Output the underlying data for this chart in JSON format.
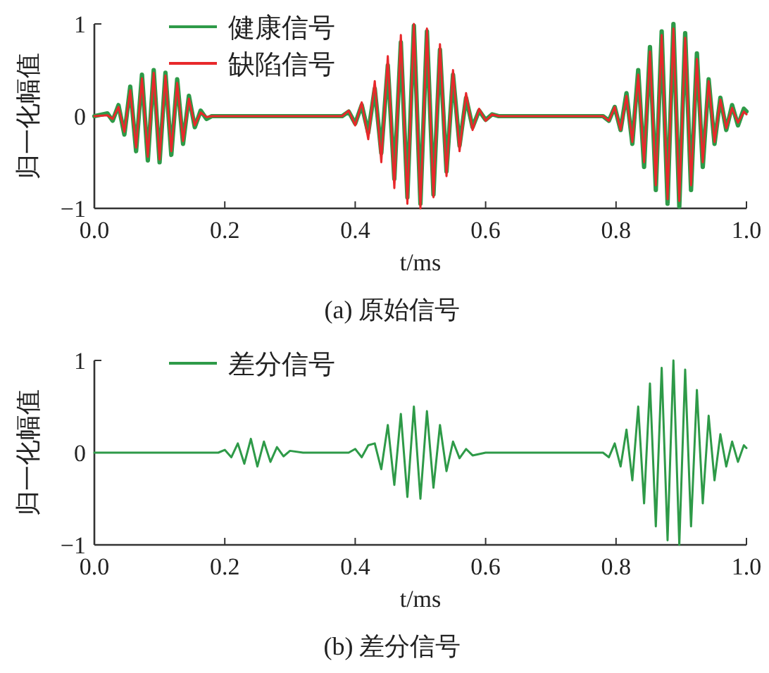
{
  "chart_data": [
    {
      "type": "line",
      "xlabel": "t/ms",
      "ylabel": "归一化幅值",
      "annotations": [
        "(a) 原始信号"
      ],
      "xlim": [
        0,
        1
      ],
      "ylim": [
        -1,
        1
      ],
      "xticks": [
        {
          "value": 0,
          "label": "0.0"
        },
        {
          "value": 0.2,
          "label": "0.2"
        },
        {
          "value": 0.4,
          "label": "0.4"
        },
        {
          "value": 0.6,
          "label": "0.6"
        },
        {
          "value": 0.8,
          "label": "0.8"
        },
        {
          "value": 1,
          "label": "1.0"
        }
      ],
      "yticks": [
        -1,
        0,
        1
      ],
      "grid": false,
      "legend": "top left",
      "series": [
        {
          "name": "健康信号",
          "color": "#2e9a48",
          "x": [
            0,
            0.02,
            0.028,
            0.037,
            0.046,
            0.055,
            0.064,
            0.073,
            0.082,
            0.091,
            0.1,
            0.109,
            0.118,
            0.127,
            0.136,
            0.145,
            0.154,
            0.163,
            0.172,
            0.18,
            0.38,
            0.39,
            0.4,
            0.41,
            0.42,
            0.43,
            0.44,
            0.45,
            0.46,
            0.47,
            0.48,
            0.49,
            0.5,
            0.51,
            0.52,
            0.53,
            0.54,
            0.55,
            0.56,
            0.57,
            0.58,
            0.59,
            0.6,
            0.61,
            0.62,
            0.78,
            0.789,
            0.798,
            0.807,
            0.816,
            0.825,
            0.834,
            0.843,
            0.852,
            0.861,
            0.87,
            0.879,
            0.888,
            0.897,
            0.906,
            0.915,
            0.924,
            0.933,
            0.942,
            0.951,
            0.96,
            0.969,
            0.978,
            0.987,
            0.996,
            1
          ],
          "values": [
            0,
            0.03,
            -0.05,
            0.12,
            -0.2,
            0.32,
            -0.38,
            0.45,
            -0.48,
            0.5,
            -0.5,
            0.47,
            -0.42,
            0.4,
            -0.3,
            0.22,
            -0.12,
            0.06,
            -0.03,
            0,
            0,
            0.05,
            -0.08,
            0.12,
            -0.18,
            0.3,
            -0.4,
            0.55,
            -0.68,
            0.8,
            -0.88,
            0.98,
            -0.95,
            0.92,
            -0.85,
            0.72,
            -0.6,
            0.45,
            -0.32,
            0.2,
            -0.12,
            0.06,
            -0.04,
            0.02,
            0,
            0,
            -0.05,
            0.1,
            -0.15,
            0.25,
            -0.3,
            0.5,
            -0.55,
            0.75,
            -0.8,
            0.92,
            -0.95,
            1,
            -0.98,
            0.9,
            -0.8,
            0.68,
            -0.55,
            0.4,
            -0.3,
            0.2,
            -0.15,
            0.12,
            -0.1,
            0.08,
            0.05
          ]
        },
        {
          "name": "缺陷信号",
          "color": "#e8282b",
          "x": [
            0,
            0.02,
            0.028,
            0.037,
            0.046,
            0.055,
            0.064,
            0.073,
            0.082,
            0.091,
            0.1,
            0.109,
            0.118,
            0.127,
            0.136,
            0.145,
            0.154,
            0.163,
            0.172,
            0.18,
            0.38,
            0.39,
            0.4,
            0.41,
            0.42,
            0.43,
            0.44,
            0.45,
            0.46,
            0.47,
            0.48,
            0.49,
            0.5,
            0.51,
            0.52,
            0.53,
            0.54,
            0.55,
            0.56,
            0.57,
            0.58,
            0.59,
            0.6,
            0.61,
            0.62,
            0.78,
            0.789,
            0.798,
            0.807,
            0.816,
            0.825,
            0.834,
            0.843,
            0.852,
            0.861,
            0.87,
            0.879,
            0.888,
            0.897,
            0.906,
            0.915,
            0.924,
            0.933,
            0.942,
            0.951,
            0.96,
            0.969,
            0.978,
            0.987,
            0.996,
            1
          ],
          "values": [
            0,
            0.01,
            -0.03,
            0.1,
            -0.17,
            0.28,
            -0.34,
            0.41,
            -0.44,
            0.47,
            -0.47,
            0.44,
            -0.38,
            0.36,
            -0.27,
            0.19,
            -0.1,
            0.04,
            -0.01,
            0,
            0,
            0.06,
            -0.1,
            0.15,
            -0.25,
            0.38,
            -0.5,
            0.65,
            -0.78,
            0.88,
            -0.95,
            1,
            -1,
            0.95,
            -0.88,
            0.78,
            -0.65,
            0.5,
            -0.38,
            0.25,
            -0.15,
            0.08,
            -0.05,
            0.02,
            0,
            0,
            -0.05,
            0.1,
            -0.15,
            0.22,
            -0.28,
            0.45,
            -0.5,
            0.7,
            -0.75,
            0.88,
            -0.9,
            0.95,
            -0.92,
            0.85,
            -0.75,
            0.62,
            -0.5,
            0.38,
            -0.28,
            0.18,
            -0.13,
            0.09,
            -0.07,
            0.05,
            0.02
          ]
        }
      ]
    },
    {
      "type": "line",
      "xlabel": "t/ms",
      "ylabel": "归一化幅值",
      "annotations": [
        "(b) 差分信号"
      ],
      "xlim": [
        0,
        1
      ],
      "ylim": [
        -1,
        1
      ],
      "xticks": [
        {
          "value": 0,
          "label": "0.0"
        },
        {
          "value": 0.2,
          "label": "0.2"
        },
        {
          "value": 0.4,
          "label": "0.4"
        },
        {
          "value": 0.6,
          "label": "0.6"
        },
        {
          "value": 0.8,
          "label": "0.8"
        },
        {
          "value": 1,
          "label": "1.0"
        }
      ],
      "yticks": [
        -1,
        0,
        1
      ],
      "grid": false,
      "legend": "top left",
      "series": [
        {
          "name": "差分信号",
          "color": "#2e9a48",
          "x": [
            0,
            0.19,
            0.2,
            0.21,
            0.22,
            0.23,
            0.24,
            0.25,
            0.26,
            0.27,
            0.28,
            0.29,
            0.3,
            0.32,
            0.39,
            0.4,
            0.41,
            0.42,
            0.43,
            0.44,
            0.45,
            0.46,
            0.47,
            0.48,
            0.49,
            0.5,
            0.51,
            0.52,
            0.53,
            0.54,
            0.55,
            0.56,
            0.57,
            0.58,
            0.6,
            0.78,
            0.789,
            0.798,
            0.807,
            0.816,
            0.825,
            0.834,
            0.843,
            0.852,
            0.861,
            0.87,
            0.879,
            0.888,
            0.897,
            0.906,
            0.915,
            0.924,
            0.933,
            0.942,
            0.951,
            0.96,
            0.969,
            0.978,
            0.987,
            0.996,
            1
          ],
          "values": [
            0,
            0,
            0.03,
            -0.05,
            0.1,
            -0.12,
            0.15,
            -0.15,
            0.12,
            -0.1,
            0.06,
            -0.04,
            0.02,
            0,
            0,
            0.04,
            -0.05,
            0.08,
            0.1,
            -0.18,
            0.3,
            -0.35,
            0.42,
            -0.48,
            0.5,
            -0.5,
            0.45,
            -0.38,
            0.3,
            -0.2,
            0.12,
            -0.06,
            0.04,
            -0.03,
            0,
            0,
            -0.05,
            0.1,
            -0.15,
            0.25,
            -0.3,
            0.5,
            -0.55,
            0.75,
            -0.8,
            0.92,
            -0.95,
            1,
            -1,
            0.9,
            -0.8,
            0.68,
            -0.55,
            0.4,
            -0.3,
            0.2,
            -0.15,
            0.12,
            -0.1,
            0.08,
            0.05
          ]
        }
      ]
    }
  ]
}
